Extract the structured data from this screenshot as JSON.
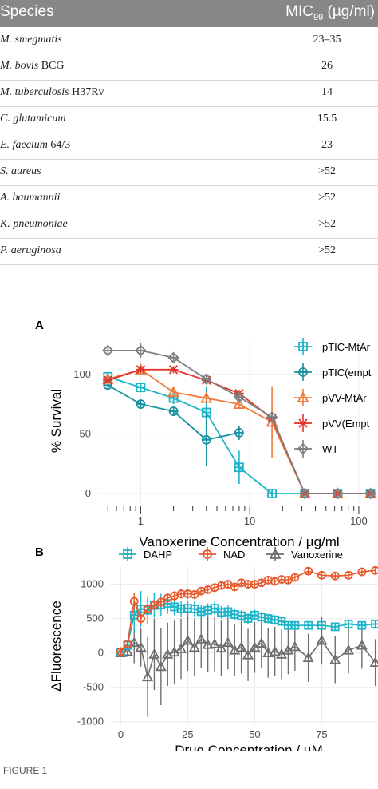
{
  "table": {
    "header_species": "Species",
    "header_mic": "MIC",
    "header_mic_sub": "99",
    "header_mic_unit": " (µg/ml)",
    "rows": [
      {
        "italic": "M. smegmatis",
        "plain": "",
        "mic": "23–35"
      },
      {
        "italic": "M. bovis",
        "plain": " BCG",
        "mic": "26"
      },
      {
        "italic": "M. tuberculosis",
        "plain": " H37Rv",
        "mic": "14"
      },
      {
        "italic": "C. glutamicum",
        "plain": "",
        "mic": "15.5"
      },
      {
        "italic": "E. faecium",
        "plain": " 64/3",
        "mic": "23"
      },
      {
        "italic": "S. aureus",
        "plain": "",
        "mic": ">52"
      },
      {
        "italic": "A. baumannii",
        "plain": "",
        "mic": ">52"
      },
      {
        "italic": "K. pneumoniae",
        "plain": "",
        "mic": ">52"
      },
      {
        "italic": "P. aeruginosa",
        "plain": "",
        "mic": ">52"
      }
    ]
  },
  "figure_label": "FIGURE 1",
  "colors": {
    "cyan": "#1eb4c8",
    "teal": "#17929e",
    "orange": "#f07a3c",
    "red": "#e2362a",
    "gray": "#7f7f7f",
    "nad": "#e8582a",
    "tri": "#6e6e6e"
  },
  "chart_data": [
    {
      "panel": "A",
      "type": "line",
      "xlabel": "Vanoxerine Concentration / µg/ml",
      "ylabel": "% Survival",
      "xscale": "log",
      "xticks": [
        1,
        10,
        100
      ],
      "xticklabels": [
        "1",
        "10",
        "100"
      ],
      "yticks": [
        0,
        50,
        100
      ],
      "ylim": [
        -8,
        130
      ],
      "xlim": [
        0.4,
        150
      ],
      "grid": true,
      "legend_position": "right",
      "x": [
        0.5,
        1,
        2,
        4,
        8,
        16,
        32,
        64,
        128
      ],
      "series": [
        {
          "name": "pTIC-MtAr",
          "marker": "square",
          "color": "#1eb4c8",
          "values": [
            98,
            89,
            80,
            68,
            22,
            0,
            0,
            0,
            0
          ],
          "err": [
            4,
            4,
            5,
            22,
            14,
            2,
            2,
            2,
            2
          ]
        },
        {
          "name": "pTIC(empt",
          "marker": "circle",
          "color": "#17929e",
          "values": [
            91,
            75,
            69,
            45,
            51,
            null,
            null,
            null,
            null
          ],
          "err": [
            4,
            4,
            4,
            22,
            6,
            0,
            0,
            0,
            0
          ]
        },
        {
          "name": "pVV-MtAr",
          "marker": "triangle",
          "color": "#f07a3c",
          "values": [
            96,
            104,
            85,
            80,
            75,
            60,
            0,
            0,
            0
          ],
          "err": [
            4,
            4,
            4,
            4,
            4,
            30,
            2,
            2,
            2
          ]
        },
        {
          "name": "pVV(Empt",
          "marker": "star",
          "color": "#e2362a",
          "values": [
            95,
            104,
            104,
            95,
            84,
            63,
            0,
            0,
            0
          ],
          "err": [
            3,
            3,
            3,
            3,
            3,
            3,
            2,
            2,
            2
          ]
        },
        {
          "name": "WT",
          "marker": "diamond",
          "color": "#7f7f7f",
          "values": [
            120,
            120,
            114,
            96,
            81,
            64,
            0,
            0,
            0
          ],
          "err": [
            3,
            6,
            3,
            3,
            3,
            3,
            2,
            2,
            2
          ]
        }
      ]
    },
    {
      "panel": "B",
      "type": "line",
      "xlabel": "Drug Concentration / µM",
      "ylabel": "ΔFluorescence",
      "xticks": [
        0,
        25,
        50,
        75
      ],
      "yticks": [
        -1000,
        -500,
        0,
        500,
        1000
      ],
      "xlim": [
        -4,
        96
      ],
      "ylim": [
        -1050,
        1250
      ],
      "grid": true,
      "legend_position": "top",
      "x": [
        0,
        2.5,
        5,
        7.5,
        10,
        12.5,
        15,
        17.5,
        20,
        22.5,
        25,
        27.5,
        30,
        32.5,
        35,
        37.5,
        40,
        42.5,
        45,
        47.5,
        50,
        52.5,
        55,
        57.5,
        60,
        62.5,
        65,
        70,
        75,
        80,
        85,
        90,
        95
      ],
      "series": [
        {
          "name": "DAHP",
          "marker": "square",
          "color": "#1eb4c8",
          "values": [
            10,
            110,
            550,
            640,
            620,
            690,
            700,
            720,
            670,
            640,
            650,
            640,
            600,
            620,
            650,
            590,
            600,
            560,
            540,
            500,
            550,
            520,
            500,
            480,
            460,
            400,
            400,
            400,
            400,
            380,
            420,
            400,
            420
          ],
          "err": [
            40,
            80,
            240,
            260,
            200,
            180,
            160,
            150,
            120,
            120,
            110,
            110,
            100,
            100,
            100,
            90,
            90,
            90,
            80,
            80,
            80,
            80,
            70,
            70,
            70,
            60,
            60,
            60,
            60,
            60,
            60,
            60,
            60
          ]
        },
        {
          "name": "NAD",
          "marker": "circle",
          "color": "#e8582a",
          "values": [
            20,
            130,
            750,
            500,
            640,
            700,
            740,
            800,
            830,
            860,
            860,
            850,
            900,
            920,
            950,
            980,
            1000,
            960,
            1020,
            1000,
            1000,
            1020,
            1060,
            1040,
            1070,
            1060,
            1100,
            1190,
            1130,
            1120,
            1130,
            1180,
            1200
          ],
          "err": [
            40,
            60,
            120,
            80,
            80,
            70,
            70,
            70,
            70,
            70,
            70,
            60,
            60,
            60,
            60,
            60,
            60,
            60,
            60,
            60,
            60,
            60,
            60,
            60,
            60,
            60,
            60,
            60,
            60,
            60,
            60,
            60,
            60
          ]
        },
        {
          "name": "Vanoxerine",
          "marker": "triangle",
          "color": "#6e6e6e",
          "values": [
            0,
            20,
            150,
            80,
            -350,
            -20,
            -200,
            -20,
            10,
            60,
            180,
            80,
            200,
            120,
            130,
            70,
            150,
            40,
            80,
            -30,
            80,
            140,
            0,
            20,
            -20,
            40,
            90,
            -70,
            180,
            -100,
            40,
            110,
            -140
          ],
          "err": [
            40,
            80,
            300,
            280,
            580,
            520,
            560,
            460,
            460,
            440,
            440,
            420,
            420,
            400,
            400,
            400,
            390,
            380,
            380,
            380,
            370,
            370,
            360,
            360,
            360,
            350,
            350,
            350,
            350,
            340,
            340,
            340,
            340
          ]
        }
      ]
    }
  ]
}
